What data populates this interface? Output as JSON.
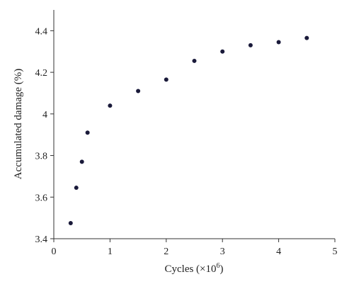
{
  "chart_data": {
    "type": "scatter",
    "title": "",
    "xlabel_base": "Cycles (×10",
    "xlabel_exp": "6",
    "xlabel_close": ")",
    "ylabel": "Accumulated damage (%)",
    "xlim": [
      0,
      5
    ],
    "ylim": [
      3.4,
      4.5
    ],
    "xticks": [
      0,
      1,
      2,
      3,
      4,
      5
    ],
    "xtick_labels": [
      "0",
      "1",
      "2",
      "3",
      "4",
      "5"
    ],
    "yticks": [
      3.4,
      3.6,
      3.8,
      4.0,
      4.2,
      4.4
    ],
    "ytick_labels": [
      "3.4",
      "3.6",
      "3.8",
      "4",
      "4.2",
      "4.4"
    ],
    "grid": false,
    "marker_color": "#1a1a3a",
    "series": [
      {
        "x": [
          0.3,
          0.4,
          0.5,
          0.6,
          1.0,
          1.5,
          2.0,
          2.5,
          3.0,
          3.5,
          4.0,
          4.5
        ],
        "y": [
          3.475,
          3.645,
          3.77,
          3.91,
          4.04,
          4.11,
          4.165,
          4.255,
          4.3,
          4.33,
          4.345,
          4.365
        ]
      }
    ]
  }
}
